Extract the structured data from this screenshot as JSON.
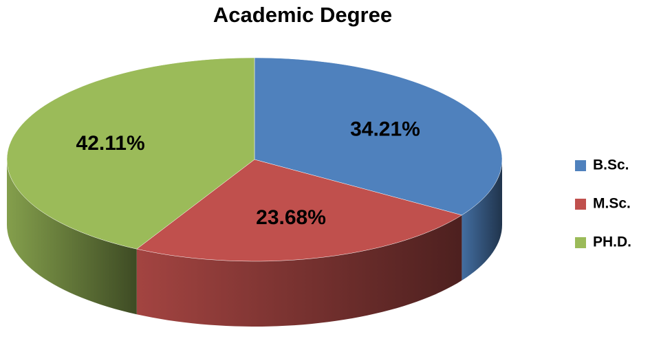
{
  "chart_data": {
    "type": "pie",
    "title": "Academic Degree",
    "categories": [
      "B.Sc.",
      "M.Sc.",
      "PH.D."
    ],
    "values": [
      34.21,
      23.68,
      42.11
    ],
    "value_labels": [
      "34.21%",
      "23.68%",
      "42.11%"
    ],
    "colors": [
      "#4f81bd",
      "#c0504d",
      "#9bbb59"
    ],
    "legend": "right"
  }
}
